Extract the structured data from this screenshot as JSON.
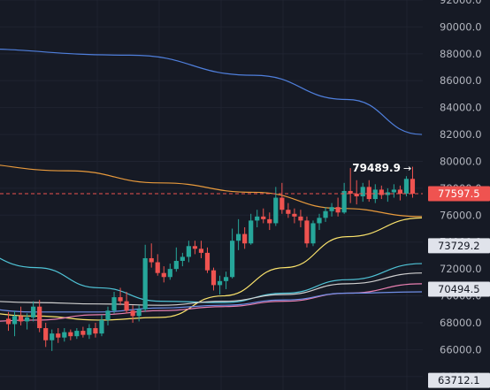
{
  "chart_data": {
    "type": "candlestick",
    "theme": {
      "background": "#161a25",
      "grid": "#1f2330",
      "axis_text": "#b2b5be",
      "up": "#26a69a",
      "down": "#ef5350"
    },
    "y_axis": {
      "range": [
        63000,
        92000
      ],
      "tick_values": [
        64000,
        66000,
        68000,
        70000,
        72000,
        74000,
        76000,
        78000,
        80000,
        82000,
        84000,
        86000,
        88000,
        90000,
        92000
      ],
      "tick_labels": [
        "64000.0",
        "66000.0",
        "68000.0",
        "70000.0",
        "72000.0",
        "74000.0",
        "76000.0",
        "78000.0",
        "80000.0",
        "82000.0",
        "84000.0",
        "86000.0",
        "88000.0",
        "90000.0",
        "92000.0"
      ]
    },
    "candles": [
      [
        68300,
        68800,
        67400,
        67900
      ],
      [
        67900,
        68900,
        67000,
        68500
      ],
      [
        68500,
        69200,
        67800,
        68100
      ],
      [
        68100,
        68700,
        67500,
        68400
      ],
      [
        68400,
        69600,
        68100,
        69200
      ],
      [
        69200,
        69700,
        67300,
        67600
      ],
      [
        67600,
        68000,
        66200,
        66700
      ],
      [
        66700,
        67500,
        65900,
        67200
      ],
      [
        67200,
        67600,
        66500,
        66900
      ],
      [
        66900,
        67600,
        66600,
        67300
      ],
      [
        67300,
        67500,
        66700,
        67000
      ],
      [
        67000,
        67600,
        66800,
        67400
      ],
      [
        67400,
        67700,
        66900,
        67100
      ],
      [
        67100,
        67900,
        66800,
        67600
      ],
      [
        67600,
        68000,
        66900,
        67200
      ],
      [
        67200,
        68600,
        67000,
        68200
      ],
      [
        68200,
        69200,
        67800,
        68900
      ],
      [
        68900,
        70300,
        68700,
        69900
      ],
      [
        69900,
        70600,
        69300,
        69600
      ],
      [
        69600,
        70300,
        68700,
        68900
      ],
      [
        68900,
        69300,
        68000,
        68500
      ],
      [
        68500,
        69300,
        68100,
        69000
      ],
      [
        69000,
        73800,
        68800,
        72800
      ],
      [
        72800,
        73900,
        72100,
        72500
      ],
      [
        72500,
        73100,
        71500,
        71700
      ],
      [
        71700,
        72200,
        71000,
        71400
      ],
      [
        71400,
        72400,
        71200,
        72000
      ],
      [
        72000,
        73600,
        71800,
        72600
      ],
      [
        72600,
        73200,
        72200,
        72900
      ],
      [
        72900,
        74100,
        72500,
        73700
      ],
      [
        73700,
        74100,
        73100,
        73500
      ],
      [
        73500,
        74100,
        72800,
        73200
      ],
      [
        73200,
        73600,
        71700,
        71900
      ],
      [
        71900,
        72100,
        70400,
        70800
      ],
      [
        70800,
        71500,
        70100,
        71100
      ],
      [
        71100,
        71800,
        70500,
        71400
      ],
      [
        71400,
        75000,
        71300,
        74100
      ],
      [
        74100,
        75700,
        73400,
        74600
      ],
      [
        74600,
        75100,
        73500,
        73900
      ],
      [
        73900,
        76100,
        73800,
        75600
      ],
      [
        75600,
        76400,
        75100,
        75900
      ],
      [
        75900,
        76500,
        75400,
        75700
      ],
      [
        75700,
        76200,
        74900,
        75400
      ],
      [
        75400,
        78100,
        75200,
        77300
      ],
      [
        77300,
        78400,
        76100,
        76400
      ],
      [
        76400,
        76900,
        75800,
        76100
      ],
      [
        76100,
        76500,
        75400,
        75900
      ],
      [
        75900,
        76400,
        75100,
        75600
      ],
      [
        75600,
        75900,
        73600,
        73900
      ],
      [
        73900,
        75600,
        73700,
        75400
      ],
      [
        75400,
        76100,
        74900,
        75800
      ],
      [
        75800,
        76600,
        75500,
        76300
      ],
      [
        76300,
        76900,
        75900,
        76600
      ],
      [
        76600,
        77300,
        75900,
        76200
      ],
      [
        76200,
        78400,
        76100,
        77800
      ],
      [
        77800,
        79500,
        76900,
        77600
      ],
      [
        77600,
        78600,
        76800,
        77400
      ],
      [
        77400,
        78400,
        77000,
        78100
      ],
      [
        78100,
        78600,
        77000,
        77200
      ],
      [
        77200,
        78300,
        76900,
        77900
      ],
      [
        77900,
        78200,
        77200,
        77500
      ],
      [
        77500,
        78000,
        77000,
        77700
      ],
      [
        77700,
        78300,
        77300,
        77900
      ],
      [
        77900,
        78200,
        77100,
        77600
      ],
      [
        77600,
        78900,
        77400,
        78700
      ],
      [
        78700,
        79600,
        77300,
        77600
      ]
    ],
    "moving_averages": [
      {
        "color": "#4f7fdc",
        "points": [
          [
            -8,
            88400
          ],
          [
            20,
            87900
          ],
          [
            40,
            86400
          ],
          [
            55,
            84600
          ],
          [
            67,
            82000
          ]
        ]
      },
      {
        "color": "#e89a3c",
        "points": [
          [
            -8,
            79900
          ],
          [
            10,
            79300
          ],
          [
            25,
            78400
          ],
          [
            40,
            77700
          ],
          [
            54,
            76500
          ],
          [
            67,
            75900
          ]
        ]
      },
      {
        "color": "#fbe36c",
        "points": [
          [
            -8,
            68900
          ],
          [
            5,
            68500
          ],
          [
            15,
            68200
          ],
          [
            25,
            68400
          ],
          [
            35,
            70000
          ],
          [
            45,
            72100
          ],
          [
            55,
            74400
          ],
          [
            67,
            75800
          ]
        ]
      },
      {
        "color": "#4fc3d6",
        "points": [
          [
            -8,
            73800
          ],
          [
            5,
            72100
          ],
          [
            15,
            70600
          ],
          [
            25,
            69600
          ],
          [
            35,
            69500
          ],
          [
            45,
            70200
          ],
          [
            55,
            71200
          ],
          [
            67,
            72400
          ]
        ]
      },
      {
        "color": "#d0d0d0",
        "points": [
          [
            -8,
            69700
          ],
          [
            5,
            69500
          ],
          [
            15,
            69400
          ],
          [
            25,
            69300
          ],
          [
            35,
            69600
          ],
          [
            45,
            70100
          ],
          [
            55,
            70900
          ],
          [
            67,
            71700
          ]
        ]
      },
      {
        "color": "#e87fb0",
        "points": [
          [
            -8,
            68000
          ],
          [
            5,
            68200
          ],
          [
            15,
            68600
          ],
          [
            25,
            68900
          ],
          [
            35,
            69200
          ],
          [
            45,
            69600
          ],
          [
            55,
            70200
          ],
          [
            67,
            70900
          ]
        ]
      },
      {
        "color": "#6f8ee6",
        "points": [
          [
            -8,
            69200
          ],
          [
            5,
            68800
          ],
          [
            15,
            68800
          ],
          [
            25,
            69100
          ],
          [
            35,
            69300
          ],
          [
            45,
            69700
          ],
          [
            55,
            70200
          ],
          [
            67,
            70300
          ]
        ]
      }
    ],
    "price_tags": [
      {
        "value": 77597.5,
        "label": "77597.5",
        "bg": "#ef5350",
        "fg": "#ffffff"
      },
      {
        "value": 73729.2,
        "label": "73729.2",
        "bg": "#e0e3eb",
        "fg": "#131722"
      },
      {
        "value": 70494.5,
        "label": "70494.5",
        "bg": "#e0e3eb",
        "fg": "#131722"
      },
      {
        "value": 63712.1,
        "label": "63712.1",
        "bg": "#e0e3eb",
        "fg": "#131722"
      }
    ],
    "current_price": 77597.5,
    "annotation": {
      "label": "79489.9",
      "value": 79489.9
    },
    "grid": true,
    "legend": "none"
  }
}
